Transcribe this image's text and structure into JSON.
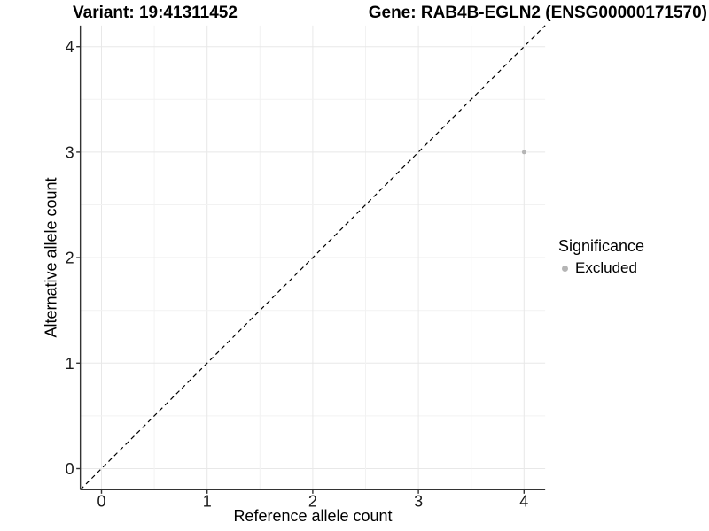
{
  "header": {
    "variant_title": "Variant: 19:41311452",
    "gene_title": "Gene: RAB4B-EGLN2 (ENSG00000171570)"
  },
  "legend": {
    "title": "Significance",
    "entries": [
      {
        "label": "Excluded",
        "color": "#b5b5b5"
      }
    ]
  },
  "colors": {
    "point": "#b5b5b5",
    "grid_major": "#e8e8e8",
    "grid_minor": "#f2f2f2",
    "axis": "#333333",
    "tick_text": "#1a1a1a",
    "identity_line": "#000000",
    "background": "#ffffff"
  },
  "chart_data": {
    "type": "scatter",
    "title": "",
    "xlabel": "Reference allele count",
    "ylabel": "Alternative allele count",
    "xlim": [
      -0.2,
      4.2
    ],
    "ylim": [
      -0.2,
      4.2
    ],
    "x_ticks": [
      0,
      1,
      2,
      3,
      4
    ],
    "y_ticks": [
      0,
      1,
      2,
      3,
      4
    ],
    "minor_grid_step": 0.5,
    "grid": true,
    "legend_position": "right",
    "series": [
      {
        "name": "Excluded",
        "color": "#b5b5b5",
        "points": [
          {
            "x": 4,
            "y": 3
          }
        ]
      }
    ],
    "reference_line": {
      "type": "identity",
      "style": "dashed",
      "color": "#000000"
    }
  }
}
